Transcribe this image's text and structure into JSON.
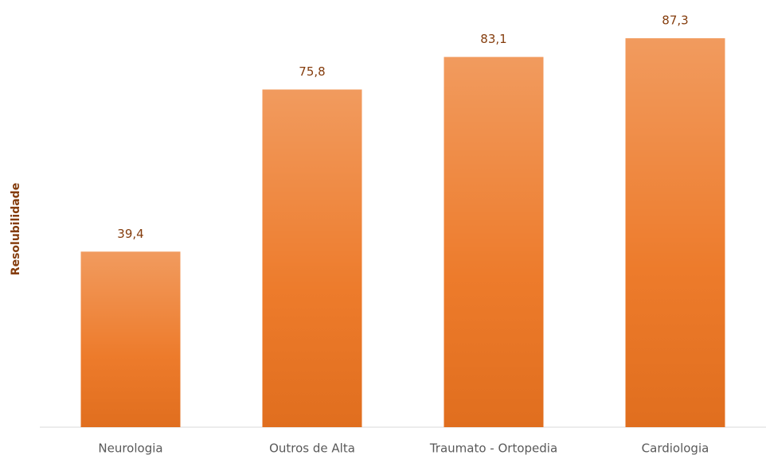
{
  "chart_data": {
    "type": "bar",
    "y_label": "Resolubilidade",
    "categories": [
      "Neurologia",
      "Outros de Alta",
      "Traumato - Ortopedia",
      "Cardiologia"
    ],
    "values": [
      39.4,
      75.8,
      83.1,
      87.3
    ],
    "value_labels": [
      "39,4",
      "75,8",
      "83,1",
      "87,3"
    ],
    "color": "#ec7420",
    "ylim": [
      0,
      90
    ],
    "grid": false
  }
}
